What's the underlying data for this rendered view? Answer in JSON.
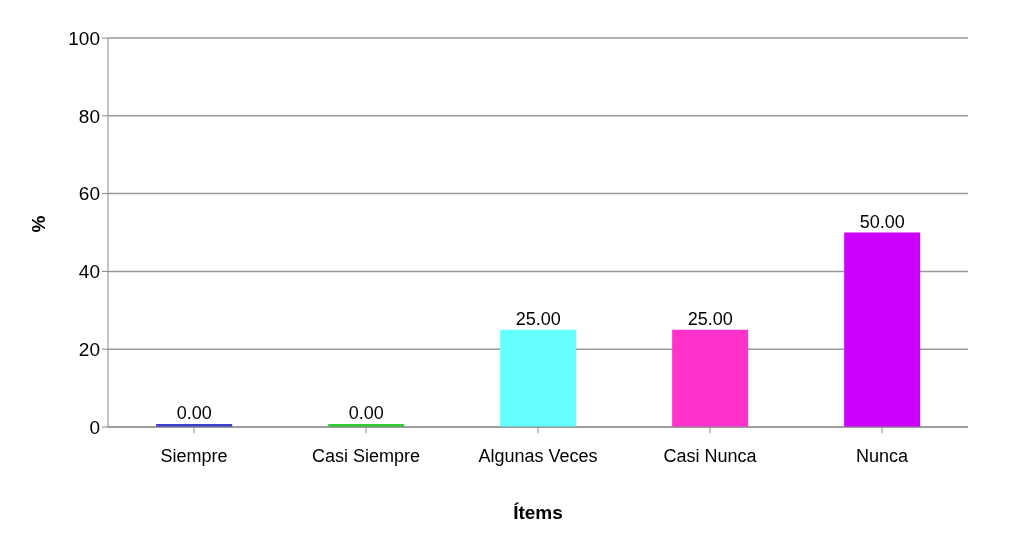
{
  "chart_data": {
    "type": "bar",
    "xlabel": "Ítems",
    "ylabel": "%",
    "categories": [
      "Siempre",
      "Casi Siempre",
      "Algunas Veces",
      "Casi Nunca",
      "Nunca"
    ],
    "values": [
      0,
      0,
      25,
      25,
      50
    ],
    "colors": [
      "#3f3fcf",
      "#33cc33",
      "#66ffff",
      "#ff33cc",
      "#cc00ff"
    ],
    "value_labels": [
      "0.00",
      "0.00",
      "25.00",
      "25.00",
      "50.00"
    ],
    "ylim": [
      0,
      100
    ],
    "yticks": [
      0,
      20,
      40,
      60,
      80,
      100
    ],
    "grid": "y",
    "legend": false
  }
}
